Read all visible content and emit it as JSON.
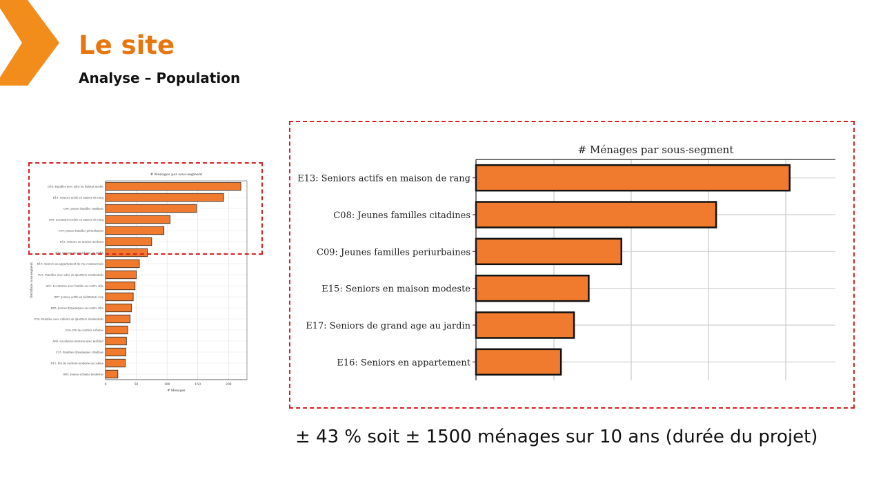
{
  "slide": {
    "title": "Le site",
    "subtitle": "Analyse – Population",
    "caption": "± 43 % soit ± 1500 ménages sur 10 ans (durée du projet)",
    "accent_color": "#e8760f",
    "highlight_color": "#d42020"
  },
  "chart_data": [
    {
      "type": "bar",
      "orientation": "horizontal",
      "title": "# Ménages par sous-segment",
      "xlabel": "# Ménages",
      "ylabel": "Distribute sous-segment",
      "xlim": [
        0,
        230
      ],
      "xticks": [
        0,
        50,
        100,
        150,
        200
      ],
      "grid": true,
      "bar_color": "#f07b2e",
      "categories": [
        "D16: Familles avec ados en habitat moder",
        "E13: Seniors actifs en maison de rang",
        "C08: Jeunes familles citadines",
        "A03: Locataires isolés en maison de rang",
        "C09: Jeunes familles périurbaines",
        "E15: Seniors en maison modeste",
        "E17: Seniors de grand age au jardin",
        "E16: Seniors en appartement de rue commerciale",
        "F22: Familles avec ados en quartiers résidentiels",
        "A01: Locataires avec famille en centre ville",
        "B07: Jeunes actifs en habitation cosy",
        "B06: Jeunes dynamiques en centre ville",
        "F20: Familles avec enfants en quartiers résidentiels",
        "G24: Fin de carrière urbaine",
        "A04: Locataires matures avec jardinet",
        "C23: Familles dynamiques citadines",
        "D11: Fin de carrière modeste en cabine",
        "B05: Jeunes urbains modestes"
      ],
      "values": [
        220,
        192,
        148,
        105,
        95,
        75,
        68,
        55,
        50,
        48,
        45,
        42,
        40,
        36,
        34,
        33,
        32,
        20
      ]
    },
    {
      "type": "bar",
      "orientation": "horizontal",
      "title": "# Ménages par sous-segment",
      "grid": true,
      "bar_color": "#f07b2e",
      "xlim": [
        0,
        220
      ],
      "categories": [
        "E13: Seniors actifs en maison de rang",
        "C08: Jeunes familles citadines",
        "C09: Jeunes familles periurbaines",
        "E15: Seniors en maison modeste",
        "E17: Seniors de grand age au jardin",
        "E16: Seniors en appartement"
      ],
      "values": [
        192,
        147,
        89,
        69,
        60,
        52
      ]
    }
  ]
}
